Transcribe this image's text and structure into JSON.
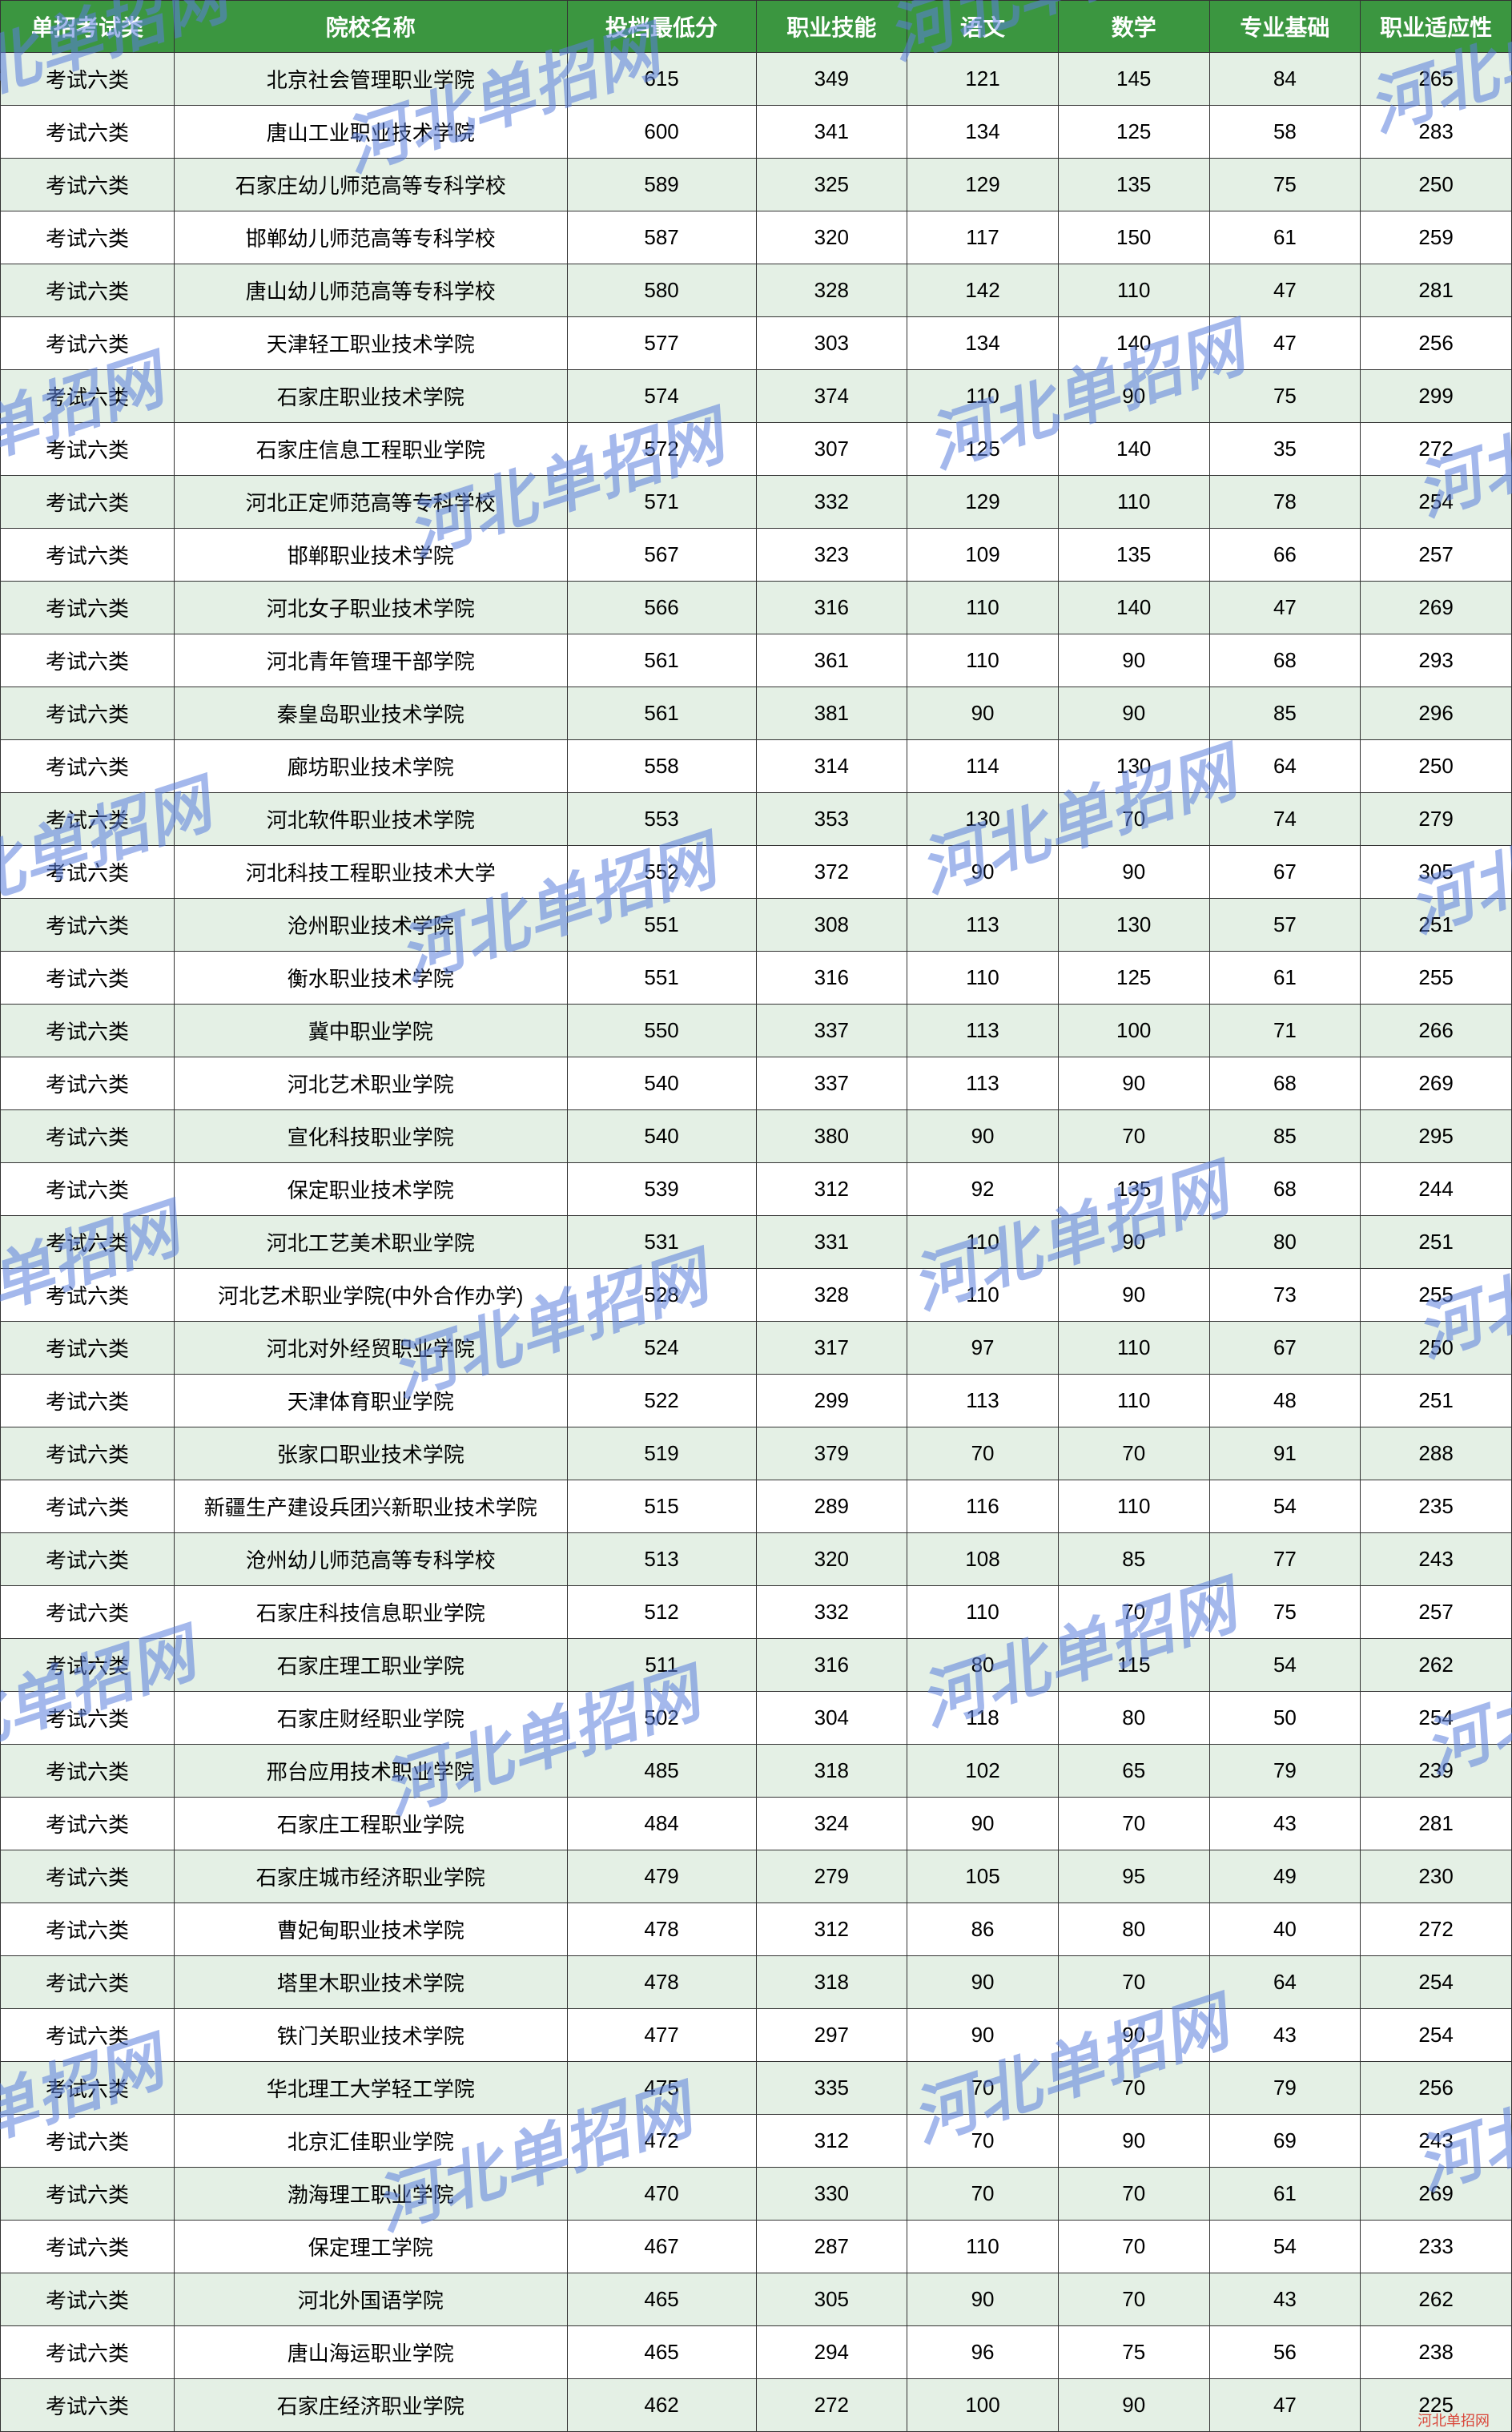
{
  "table": {
    "header_bg": "#3b9640",
    "header_fg": "#ffffff",
    "row_odd_bg": "#e4f0e5",
    "row_even_bg": "#ffffff",
    "border_color": "#333333",
    "font_family": "Microsoft YaHei",
    "header_fontsize": 28,
    "cell_fontsize": 26,
    "columns": [
      "单招考试类",
      "院校名称",
      "投档最低分",
      "职业技能",
      "语文",
      "数学",
      "专业基础",
      "职业适应性"
    ],
    "col_widths_pct": [
      11.5,
      26,
      12.5,
      10,
      10,
      10,
      10,
      10
    ],
    "rows": [
      [
        "考试六类",
        "北京社会管理职业学院",
        "615",
        "349",
        "121",
        "145",
        "84",
        "265"
      ],
      [
        "考试六类",
        "唐山工业职业技术学院",
        "600",
        "341",
        "134",
        "125",
        "58",
        "283"
      ],
      [
        "考试六类",
        "石家庄幼儿师范高等专科学校",
        "589",
        "325",
        "129",
        "135",
        "75",
        "250"
      ],
      [
        "考试六类",
        "邯郸幼儿师范高等专科学校",
        "587",
        "320",
        "117",
        "150",
        "61",
        "259"
      ],
      [
        "考试六类",
        "唐山幼儿师范高等专科学校",
        "580",
        "328",
        "142",
        "110",
        "47",
        "281"
      ],
      [
        "考试六类",
        "天津轻工职业技术学院",
        "577",
        "303",
        "134",
        "140",
        "47",
        "256"
      ],
      [
        "考试六类",
        "石家庄职业技术学院",
        "574",
        "374",
        "110",
        "90",
        "75",
        "299"
      ],
      [
        "考试六类",
        "石家庄信息工程职业学院",
        "572",
        "307",
        "125",
        "140",
        "35",
        "272"
      ],
      [
        "考试六类",
        "河北正定师范高等专科学校",
        "571",
        "332",
        "129",
        "110",
        "78",
        "254"
      ],
      [
        "考试六类",
        "邯郸职业技术学院",
        "567",
        "323",
        "109",
        "135",
        "66",
        "257"
      ],
      [
        "考试六类",
        "河北女子职业技术学院",
        "566",
        "316",
        "110",
        "140",
        "47",
        "269"
      ],
      [
        "考试六类",
        "河北青年管理干部学院",
        "561",
        "361",
        "110",
        "90",
        "68",
        "293"
      ],
      [
        "考试六类",
        "秦皇岛职业技术学院",
        "561",
        "381",
        "90",
        "90",
        "85",
        "296"
      ],
      [
        "考试六类",
        "廊坊职业技术学院",
        "558",
        "314",
        "114",
        "130",
        "64",
        "250"
      ],
      [
        "考试六类",
        "河北软件职业技术学院",
        "553",
        "353",
        "130",
        "70",
        "74",
        "279"
      ],
      [
        "考试六类",
        "河北科技工程职业技术大学",
        "552",
        "372",
        "90",
        "90",
        "67",
        "305"
      ],
      [
        "考试六类",
        "沧州职业技术学院",
        "551",
        "308",
        "113",
        "130",
        "57",
        "251"
      ],
      [
        "考试六类",
        "衡水职业技术学院",
        "551",
        "316",
        "110",
        "125",
        "61",
        "255"
      ],
      [
        "考试六类",
        "冀中职业学院",
        "550",
        "337",
        "113",
        "100",
        "71",
        "266"
      ],
      [
        "考试六类",
        "河北艺术职业学院",
        "540",
        "337",
        "113",
        "90",
        "68",
        "269"
      ],
      [
        "考试六类",
        "宣化科技职业学院",
        "540",
        "380",
        "90",
        "70",
        "85",
        "295"
      ],
      [
        "考试六类",
        "保定职业技术学院",
        "539",
        "312",
        "92",
        "135",
        "68",
        "244"
      ],
      [
        "考试六类",
        "河北工艺美术职业学院",
        "531",
        "331",
        "110",
        "90",
        "80",
        "251"
      ],
      [
        "考试六类",
        "河北艺术职业学院(中外合作办学)",
        "528",
        "328",
        "110",
        "90",
        "73",
        "255"
      ],
      [
        "考试六类",
        "河北对外经贸职业学院",
        "524",
        "317",
        "97",
        "110",
        "67",
        "250"
      ],
      [
        "考试六类",
        "天津体育职业学院",
        "522",
        "299",
        "113",
        "110",
        "48",
        "251"
      ],
      [
        "考试六类",
        "张家口职业技术学院",
        "519",
        "379",
        "70",
        "70",
        "91",
        "288"
      ],
      [
        "考试六类",
        "新疆生产建设兵团兴新职业技术学院",
        "515",
        "289",
        "116",
        "110",
        "54",
        "235"
      ],
      [
        "考试六类",
        "沧州幼儿师范高等专科学校",
        "513",
        "320",
        "108",
        "85",
        "77",
        "243"
      ],
      [
        "考试六类",
        "石家庄科技信息职业学院",
        "512",
        "332",
        "110",
        "70",
        "75",
        "257"
      ],
      [
        "考试六类",
        "石家庄理工职业学院",
        "511",
        "316",
        "80",
        "115",
        "54",
        "262"
      ],
      [
        "考试六类",
        "石家庄财经职业学院",
        "502",
        "304",
        "118",
        "80",
        "50",
        "254"
      ],
      [
        "考试六类",
        "邢台应用技术职业学院",
        "485",
        "318",
        "102",
        "65",
        "79",
        "239"
      ],
      [
        "考试六类",
        "石家庄工程职业学院",
        "484",
        "324",
        "90",
        "70",
        "43",
        "281"
      ],
      [
        "考试六类",
        "石家庄城市经济职业学院",
        "479",
        "279",
        "105",
        "95",
        "49",
        "230"
      ],
      [
        "考试六类",
        "曹妃甸职业技术学院",
        "478",
        "312",
        "86",
        "80",
        "40",
        "272"
      ],
      [
        "考试六类",
        "塔里木职业技术学院",
        "478",
        "318",
        "90",
        "70",
        "64",
        "254"
      ],
      [
        "考试六类",
        "铁门关职业技术学院",
        "477",
        "297",
        "90",
        "90",
        "43",
        "254"
      ],
      [
        "考试六类",
        "华北理工大学轻工学院",
        "475",
        "335",
        "70",
        "70",
        "79",
        "256"
      ],
      [
        "考试六类",
        "北京汇佳职业学院",
        "472",
        "312",
        "70",
        "90",
        "69",
        "243"
      ],
      [
        "考试六类",
        "渤海理工职业学院",
        "470",
        "330",
        "70",
        "70",
        "61",
        "269"
      ],
      [
        "考试六类",
        "保定理工学院",
        "467",
        "287",
        "110",
        "70",
        "54",
        "233"
      ],
      [
        "考试六类",
        "河北外国语学院",
        "465",
        "305",
        "90",
        "70",
        "43",
        "262"
      ],
      [
        "考试六类",
        "唐山海运职业学院",
        "465",
        "294",
        "96",
        "75",
        "56",
        "238"
      ],
      [
        "考试六类",
        "石家庄经济职业学院",
        "462",
        "272",
        "100",
        "90",
        "47",
        "225"
      ]
    ]
  },
  "watermark": {
    "text": "河北单招网",
    "color": "#5a7fdd",
    "fontsize": 80,
    "rotate_deg": -18,
    "opacity": 0.55,
    "positions": [
      [
        -120,
        -10
      ],
      [
        420,
        60
      ],
      [
        1100,
        -80
      ],
      [
        1700,
        10
      ],
      [
        -200,
        470
      ],
      [
        500,
        540
      ],
      [
        1150,
        430
      ],
      [
        1760,
        490
      ],
      [
        -140,
        1000
      ],
      [
        490,
        1070
      ],
      [
        1140,
        960
      ],
      [
        1750,
        1010
      ],
      [
        -180,
        1530
      ],
      [
        480,
        1590
      ],
      [
        1130,
        1480
      ],
      [
        1760,
        1540
      ],
      [
        -160,
        2060
      ],
      [
        470,
        2110
      ],
      [
        1140,
        2000
      ],
      [
        1770,
        2060
      ],
      [
        -200,
        2570
      ],
      [
        460,
        2630
      ],
      [
        1130,
        2520
      ],
      [
        1760,
        2580
      ]
    ]
  },
  "footer_mark": {
    "text": "河北单招网",
    "color": "#d9463a",
    "fontsize": 18
  }
}
